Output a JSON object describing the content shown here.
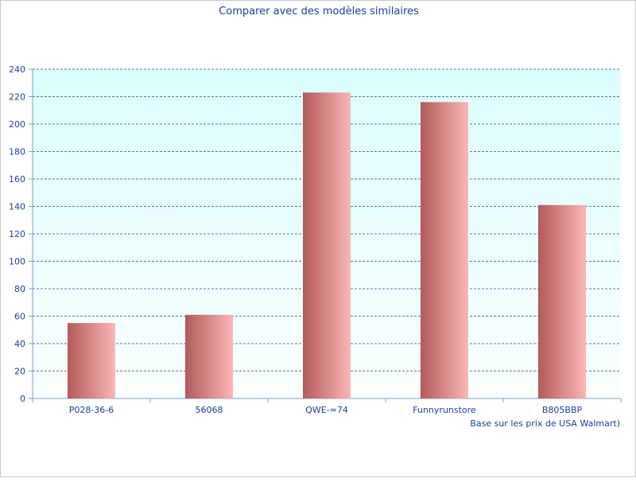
{
  "chart_data": {
    "type": "bar",
    "title": "Comparer avec des modèles similaires",
    "xlabel": "Base sur les prix de USA Walmart)",
    "ylabel": "",
    "categories": [
      "P028-36-6",
      "56068",
      "QWE-=74",
      "Funnyrunstore",
      "B805BBP"
    ],
    "values": [
      55,
      61,
      223,
      216,
      141
    ],
    "ylim": [
      0,
      240
    ],
    "yticks": [
      0,
      20,
      40,
      60,
      80,
      100,
      120,
      140,
      160,
      180,
      200,
      220,
      240
    ],
    "grid": true,
    "legend": "none"
  },
  "colors": {
    "text": "#1a3f9e",
    "grid": "#2a4a8a",
    "bar_dark": "#b35a5a",
    "bar_light": "#fbb6b6",
    "plot_top": "#dcfdfd",
    "plot_bottom": "#fafefe",
    "axis": "#7aa0c8"
  }
}
